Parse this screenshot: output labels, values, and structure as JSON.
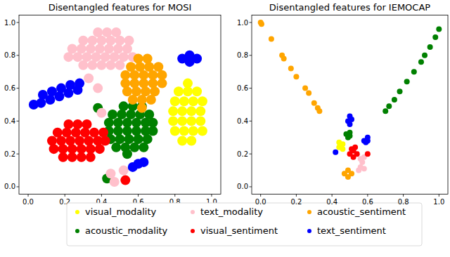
{
  "chart_data": [
    {
      "type": "scatter",
      "title": "Disentangled features for MOSI",
      "xlim": [
        -0.05,
        1.05
      ],
      "ylim": [
        -0.045,
        1.045
      ],
      "xticks": [
        {
          "value": 0,
          "label": "0.0"
        },
        {
          "value": 0.2,
          "label": "0.2"
        },
        {
          "value": 0.4,
          "label": "0.4"
        },
        {
          "value": 0.6,
          "label": "0.6"
        },
        {
          "value": 0.8,
          "label": "0.8"
        },
        {
          "value": 1,
          "label": "1.0"
        }
      ],
      "yticks": [
        {
          "value": 0,
          "label": "0.0"
        },
        {
          "value": 0.2,
          "label": "0.2"
        },
        {
          "value": 0.4,
          "label": "0.4"
        },
        {
          "value": 0.6,
          "label": "0.6"
        },
        {
          "value": 0.8,
          "label": "0.8"
        },
        {
          "value": 1,
          "label": "1.0"
        }
      ],
      "grid": false,
      "legend": "bottom",
      "marker": "o",
      "series": [
        {
          "name": "visual_modality",
          "color": "yellow",
          "x": [
            0.84,
            0.89,
            0.8,
            0.85,
            0.9,
            0.95,
            0.79,
            0.84,
            0.89,
            0.94,
            0.79,
            0.84,
            0.89,
            0.94,
            0.8,
            0.85,
            0.9,
            0.95,
            0.82,
            0.87,
            0.92,
            0.87
          ],
          "values": [
            0.28,
            0.28,
            0.34,
            0.34,
            0.34,
            0.34,
            0.4,
            0.4,
            0.4,
            0.4,
            0.46,
            0.46,
            0.46,
            0.46,
            0.52,
            0.52,
            0.52,
            0.52,
            0.58,
            0.58,
            0.58,
            0.63
          ]
        },
        {
          "name": "acoustic_modality",
          "color": "green",
          "x": [
            0.52,
            0.57,
            0.62,
            0.46,
            0.51,
            0.56,
            0.61,
            0.66,
            0.44,
            0.49,
            0.54,
            0.59,
            0.64,
            0.68,
            0.44,
            0.49,
            0.54,
            0.59,
            0.64,
            0.68,
            0.45,
            0.5,
            0.55,
            0.6,
            0.65,
            0.48,
            0.53,
            0.58,
            0.63,
            0.54,
            0.43,
            0.38
          ],
          "values": [
            0.49,
            0.49,
            0.49,
            0.44,
            0.44,
            0.44,
            0.44,
            0.44,
            0.39,
            0.39,
            0.39,
            0.39,
            0.39,
            0.39,
            0.34,
            0.34,
            0.34,
            0.34,
            0.34,
            0.34,
            0.29,
            0.29,
            0.29,
            0.29,
            0.29,
            0.24,
            0.24,
            0.24,
            0.24,
            0.2,
            0.05,
            0.48
          ]
        },
        {
          "name": "text_modality",
          "color": "pink",
          "x": [
            0.38,
            0.43,
            0.48,
            0.3,
            0.35,
            0.4,
            0.45,
            0.5,
            0.55,
            0.24,
            0.29,
            0.34,
            0.39,
            0.44,
            0.49,
            0.54,
            0.22,
            0.27,
            0.32,
            0.37,
            0.42,
            0.47,
            0.52,
            0.57,
            0.3,
            0.35,
            0.4,
            0.45,
            0.5,
            0.33,
            0.38,
            0.4,
            0.45,
            0.47,
            0.52
          ],
          "values": [
            0.94,
            0.94,
            0.94,
            0.89,
            0.89,
            0.89,
            0.89,
            0.89,
            0.89,
            0.84,
            0.84,
            0.84,
            0.84,
            0.84,
            0.84,
            0.84,
            0.79,
            0.79,
            0.79,
            0.79,
            0.79,
            0.79,
            0.79,
            0.79,
            0.74,
            0.74,
            0.74,
            0.74,
            0.74,
            0.66,
            0.6,
            0.45,
            0.08,
            0.03,
            0.1
          ]
        },
        {
          "name": "visual_sentiment",
          "color": "red",
          "x": [
            0.22,
            0.27,
            0.32,
            0.16,
            0.21,
            0.26,
            0.31,
            0.36,
            0.41,
            0.13,
            0.18,
            0.23,
            0.28,
            0.33,
            0.38,
            0.42,
            0.14,
            0.19,
            0.24,
            0.29,
            0.34,
            0.39,
            0.19,
            0.24,
            0.29,
            0.34,
            0.53
          ],
          "values": [
            0.38,
            0.38,
            0.38,
            0.33,
            0.33,
            0.33,
            0.33,
            0.33,
            0.33,
            0.28,
            0.28,
            0.28,
            0.28,
            0.28,
            0.28,
            0.28,
            0.23,
            0.23,
            0.23,
            0.23,
            0.23,
            0.23,
            0.18,
            0.18,
            0.18,
            0.18,
            0.04
          ]
        },
        {
          "name": "acoustic_sentiment",
          "color": "orange",
          "x": [
            0.6,
            0.65,
            0.56,
            0.61,
            0.66,
            0.71,
            0.53,
            0.58,
            0.63,
            0.68,
            0.73,
            0.53,
            0.58,
            0.63,
            0.68,
            0.73,
            0.54,
            0.59,
            0.64,
            0.69,
            0.57,
            0.62,
            0.67,
            0.62
          ],
          "values": [
            0.78,
            0.78,
            0.73,
            0.73,
            0.73,
            0.73,
            0.68,
            0.68,
            0.68,
            0.68,
            0.68,
            0.63,
            0.63,
            0.63,
            0.63,
            0.63,
            0.58,
            0.58,
            0.58,
            0.58,
            0.53,
            0.53,
            0.53,
            0.48
          ]
        },
        {
          "name": "text_sentiment",
          "color": "blue",
          "x": [
            0.03,
            0.07,
            0.08,
            0.12,
            0.13,
            0.17,
            0.18,
            0.22,
            0.23,
            0.27,
            0.28,
            0.84,
            0.88,
            0.88,
            0.92,
            0.57,
            0.6,
            0.63
          ],
          "values": [
            0.5,
            0.51,
            0.56,
            0.53,
            0.58,
            0.55,
            0.6,
            0.57,
            0.62,
            0.59,
            0.63,
            0.78,
            0.8,
            0.76,
            0.78,
            0.12,
            0.14,
            0.15
          ]
        }
      ]
    },
    {
      "type": "scatter",
      "title": "Disentangled features for IEMOCAP",
      "xlim": [
        -0.05,
        1.05
      ],
      "ylim": [
        -0.045,
        1.045
      ],
      "xticks": [
        {
          "value": 0,
          "label": "0.0"
        },
        {
          "value": 0.2,
          "label": "0.2"
        },
        {
          "value": 0.4,
          "label": "0.4"
        },
        {
          "value": 0.6,
          "label": "0.6"
        },
        {
          "value": 0.8,
          "label": "0.8"
        },
        {
          "value": 1,
          "label": "1.0"
        }
      ],
      "yticks": [
        {
          "value": 0,
          "label": "0.0"
        },
        {
          "value": 0.2,
          "label": "0.2"
        },
        {
          "value": 0.4,
          "label": "0.4"
        },
        {
          "value": 0.6,
          "label": "0.6"
        },
        {
          "value": 0.8,
          "label": "0.8"
        },
        {
          "value": 1,
          "label": "1.0"
        }
      ],
      "grid": false,
      "marker": "o",
      "series": [
        {
          "name": "visual_modality",
          "color": "yellow",
          "x": [
            0.44,
            0.46,
            0.44,
            0.46,
            0.45
          ],
          "values": [
            0.24,
            0.26,
            0.27,
            0.23,
            0.25
          ]
        },
        {
          "name": "acoustic_modality",
          "color": "green",
          "x": [
            0.48,
            0.5,
            0.49,
            0.5,
            0.7,
            0.72,
            0.75,
            0.78,
            0.82,
            0.86,
            0.9,
            0.92,
            0.95,
            0.98,
            1.0
          ],
          "values": [
            0.32,
            0.33,
            0.3,
            0.31,
            0.46,
            0.49,
            0.53,
            0.58,
            0.64,
            0.7,
            0.76,
            0.8,
            0.85,
            0.91,
            0.96
          ]
        },
        {
          "name": "text_modality",
          "color": "pink",
          "x": [
            0.56,
            0.58,
            0.57,
            0.56,
            0.58,
            0.55
          ],
          "values": [
            0.17,
            0.18,
            0.15,
            0.12,
            0.11,
            0.1
          ]
        },
        {
          "name": "visual_sentiment",
          "color": "red",
          "x": [
            0.5,
            0.52,
            0.54,
            0.52,
            0.51,
            0.53,
            0.6
          ],
          "values": [
            0.2,
            0.22,
            0.2,
            0.18,
            0.23,
            0.24,
            0.2
          ]
        },
        {
          "name": "acoustic_sentiment",
          "color": "orange",
          "x": [
            0.0,
            0.005,
            0.06,
            0.12,
            0.13,
            0.17,
            0.2,
            0.25,
            0.27,
            0.3,
            0.32,
            0.33,
            0.47,
            0.49,
            0.51,
            0.49
          ],
          "values": [
            1.0,
            0.99,
            0.9,
            0.8,
            0.78,
            0.72,
            0.67,
            0.6,
            0.57,
            0.51,
            0.48,
            0.46,
            0.08,
            0.1,
            0.08,
            0.06
          ]
        },
        {
          "name": "text_sentiment",
          "color": "blue",
          "x": [
            0.49,
            0.51,
            0.5,
            0.5,
            0.58,
            0.6,
            0.59,
            0.6,
            0.42
          ],
          "values": [
            0.4,
            0.41,
            0.43,
            0.38,
            0.28,
            0.3,
            0.27,
            0.28,
            0.21
          ]
        }
      ]
    }
  ]
}
